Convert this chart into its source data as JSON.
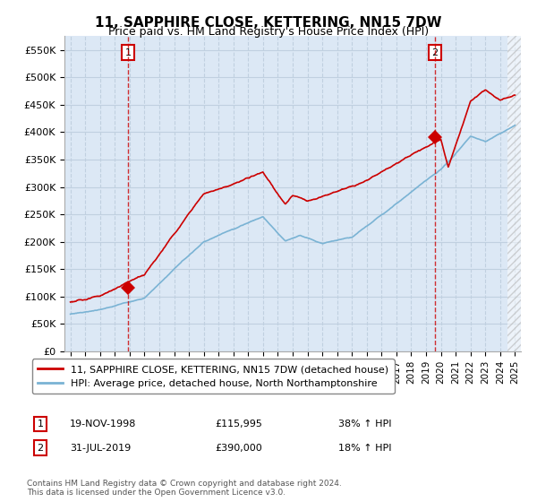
{
  "title": "11, SAPPHIRE CLOSE, KETTERING, NN15 7DW",
  "subtitle": "Price paid vs. HM Land Registry's House Price Index (HPI)",
  "legend_line1": "11, SAPPHIRE CLOSE, KETTERING, NN15 7DW (detached house)",
  "legend_line2": "HPI: Average price, detached house, North Northamptonshire",
  "annotation1_date": "19-NOV-1998",
  "annotation1_price": "£115,995",
  "annotation1_hpi": "38% ↑ HPI",
  "annotation2_date": "31-JUL-2019",
  "annotation2_price": "£390,000",
  "annotation2_hpi": "18% ↑ HPI",
  "footnote": "Contains HM Land Registry data © Crown copyright and database right 2024.\nThis data is licensed under the Open Government Licence v3.0.",
  "red_color": "#cc0000",
  "blue_color": "#7ab3d4",
  "grid_color": "#c0d0e0",
  "bg_color": "#ffffff",
  "plot_bg": "#dce8f5",
  "ylim": [
    0,
    575000
  ],
  "yticks": [
    0,
    50000,
    100000,
    150000,
    200000,
    250000,
    300000,
    350000,
    400000,
    450000,
    500000,
    550000
  ],
  "ytick_labels": [
    "£0",
    "£50K",
    "£100K",
    "£150K",
    "£200K",
    "£250K",
    "£300K",
    "£350K",
    "£400K",
    "£450K",
    "£500K",
    "£550K"
  ],
  "sale1_x": 1998.88,
  "sale1_y": 115995,
  "sale2_x": 2019.58,
  "sale2_y": 390000,
  "xlim_left": 1994.6,
  "xlim_right": 2025.4
}
